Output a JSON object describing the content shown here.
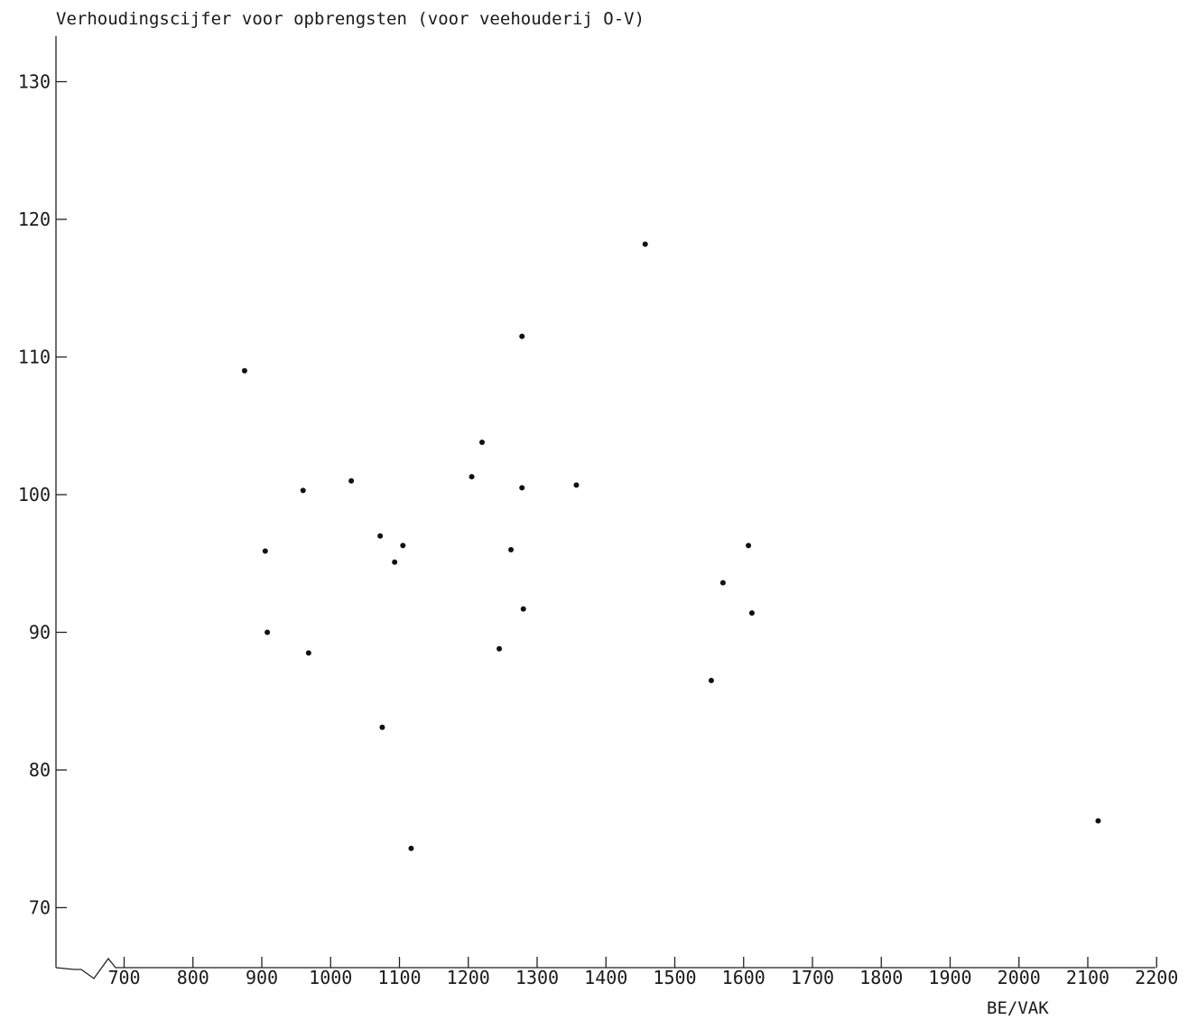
{
  "chart_data": {
    "type": "scatter",
    "title": "Verhoudingscijfer voor opbrengsten (voor veehouderij O-V)",
    "xlabel": "BE/VAK",
    "ylabel": "",
    "x_ticks": [
      700,
      800,
      900,
      1000,
      1100,
      1200,
      1300,
      1400,
      1500,
      1600,
      1700,
      1800,
      1900,
      2000,
      2100,
      2200
    ],
    "y_ticks": [
      70,
      80,
      90,
      100,
      110,
      120,
      130
    ],
    "xlim": [
      610,
      2230
    ],
    "ylim": [
      66,
      133
    ],
    "axis_break": true,
    "grid": false,
    "legend": "none",
    "color": "#111111",
    "points": [
      {
        "x": 875,
        "y": 109.0
      },
      {
        "x": 905,
        "y": 95.9
      },
      {
        "x": 908,
        "y": 90.0
      },
      {
        "x": 960,
        "y": 100.3
      },
      {
        "x": 968,
        "y": 88.5
      },
      {
        "x": 1030,
        "y": 101.0
      },
      {
        "x": 1072,
        "y": 97.0
      },
      {
        "x": 1075,
        "y": 83.1
      },
      {
        "x": 1093,
        "y": 95.1
      },
      {
        "x": 1105,
        "y": 96.3
      },
      {
        "x": 1117,
        "y": 74.3
      },
      {
        "x": 1205,
        "y": 101.3
      },
      {
        "x": 1220,
        "y": 103.8
      },
      {
        "x": 1245,
        "y": 88.8
      },
      {
        "x": 1262,
        "y": 96.0
      },
      {
        "x": 1278,
        "y": 100.5
      },
      {
        "x": 1278,
        "y": 111.5
      },
      {
        "x": 1280,
        "y": 91.7
      },
      {
        "x": 1357,
        "y": 100.7
      },
      {
        "x": 1457,
        "y": 118.2
      },
      {
        "x": 1553,
        "y": 86.5
      },
      {
        "x": 1570,
        "y": 93.6
      },
      {
        "x": 1607,
        "y": 96.3
      },
      {
        "x": 1612,
        "y": 91.4
      },
      {
        "x": 2115,
        "y": 76.3
      }
    ]
  }
}
